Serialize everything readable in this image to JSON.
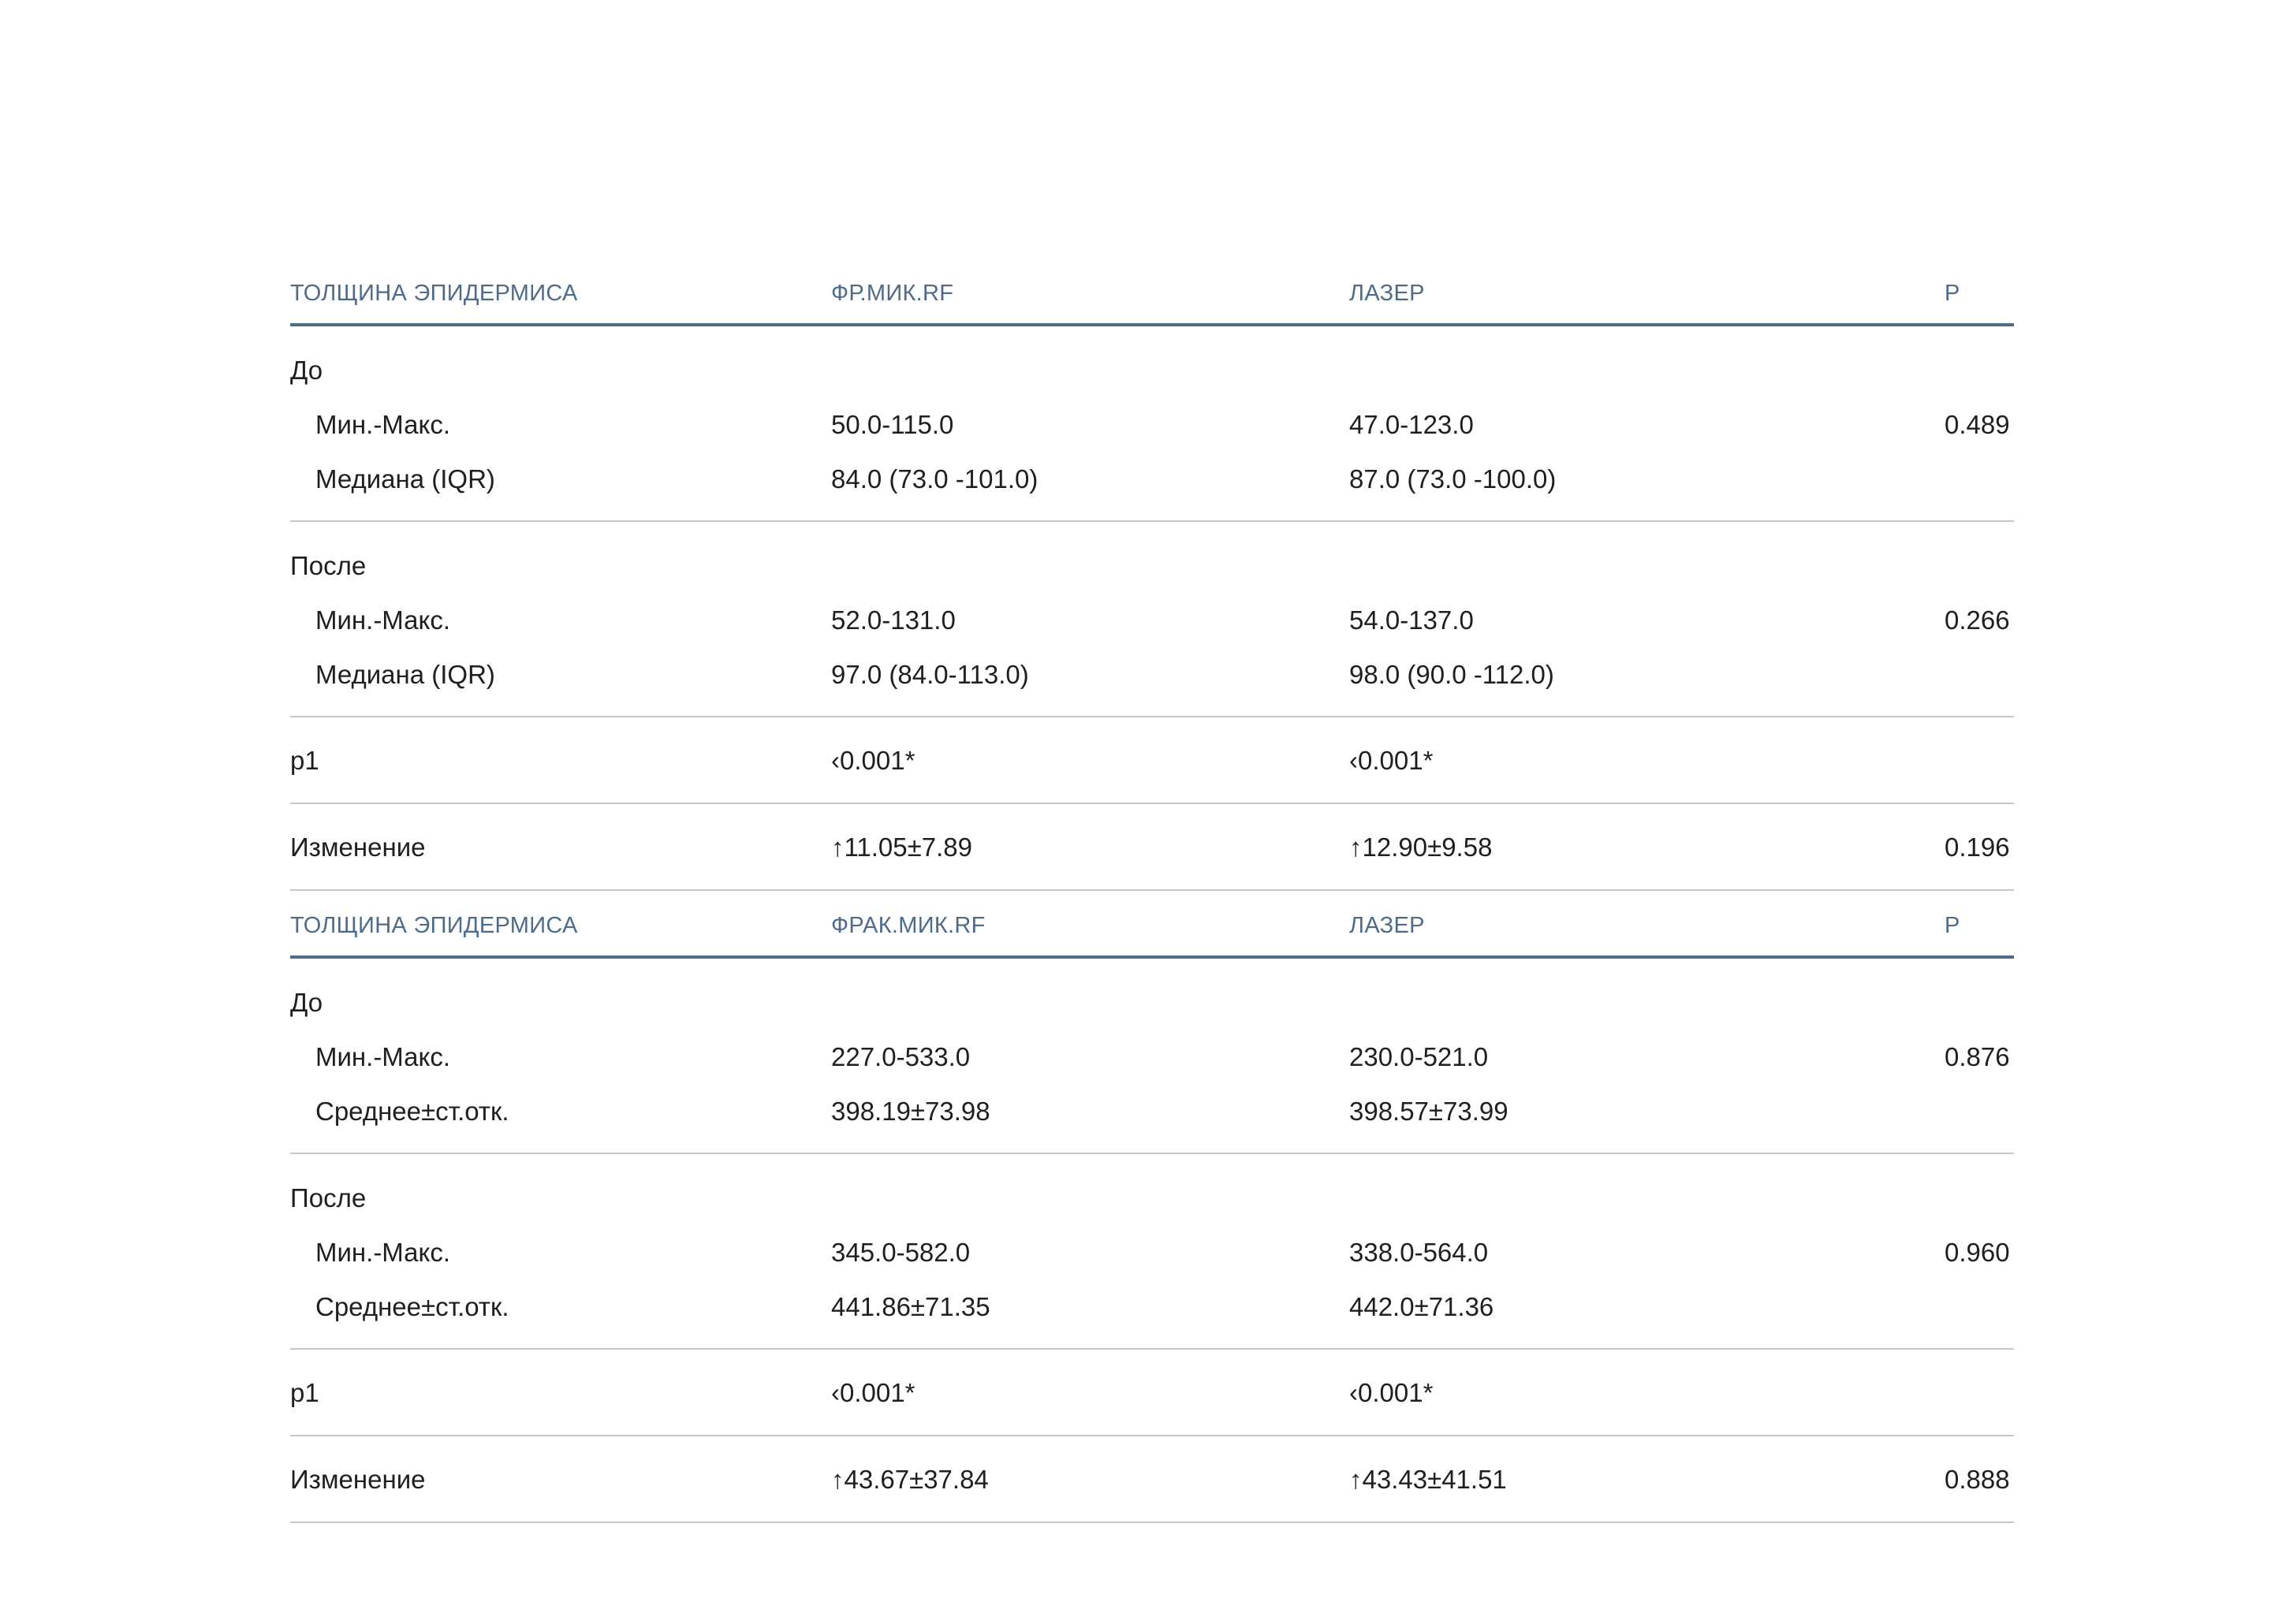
{
  "tables": [
    {
      "headers": [
        "ТОЛЩИНА ЭПИДЕРМИСА",
        "ФР.МИК.RF",
        "ЛАЗЕР",
        "P"
      ],
      "groups": [
        {
          "label": "До",
          "rows": [
            {
              "label": "Мин.-Макс.",
              "a": "50.0-115.0",
              "b": "47.0-123.0",
              "p": "0.489"
            },
            {
              "label": "Медиана (IQR)",
              "a": "84.0 (73.0 -101.0)",
              "b": "87.0 (73.0 -100.0)",
              "p": ""
            }
          ]
        },
        {
          "label": "После",
          "rows": [
            {
              "label": "Мин.-Макс.",
              "a": "52.0-131.0",
              "b": "54.0-137.0",
              "p": "0.266"
            },
            {
              "label": "Медиана (IQR)",
              "a": "97.0 (84.0-113.0)",
              "b": "98.0 (90.0 -112.0)",
              "p": ""
            }
          ]
        }
      ],
      "p1": {
        "label": "p1",
        "a": "‹0.001*",
        "b": "‹0.001*",
        "p": ""
      },
      "change": {
        "label": "Изменение",
        "a": "↑11.05±7.89",
        "b": "↑12.90±9.58",
        "p": "0.196"
      }
    },
    {
      "headers": [
        "ТОЛЩИНА ЭПИДЕРМИСА",
        "ФРАК.МИК.RF",
        "ЛАЗЕР",
        "P"
      ],
      "groups": [
        {
          "label": "До",
          "rows": [
            {
              "label": "Мин.-Макс.",
              "a": "227.0-533.0",
              "b": "230.0-521.0",
              "p": "0.876"
            },
            {
              "label": "Среднее±ст.отк.",
              "a": "398.19±73.98",
              "b": "398.57±73.99",
              "p": ""
            }
          ]
        },
        {
          "label": "После",
          "rows": [
            {
              "label": "Мин.-Макс.",
              "a": "345.0-582.0",
              "b": "338.0-564.0",
              "p": "0.960"
            },
            {
              "label": "Среднее±ст.отк.",
              "a": "441.86±71.35",
              "b": "442.0±71.36",
              "p": ""
            }
          ]
        }
      ],
      "p1": {
        "label": "p1",
        "a": "‹0.001*",
        "b": "‹0.001*",
        "p": ""
      },
      "change": {
        "label": "Изменение",
        "a": "↑43.67±37.84",
        "b": "↑43.43±41.51",
        "p": "0.888"
      }
    }
  ]
}
